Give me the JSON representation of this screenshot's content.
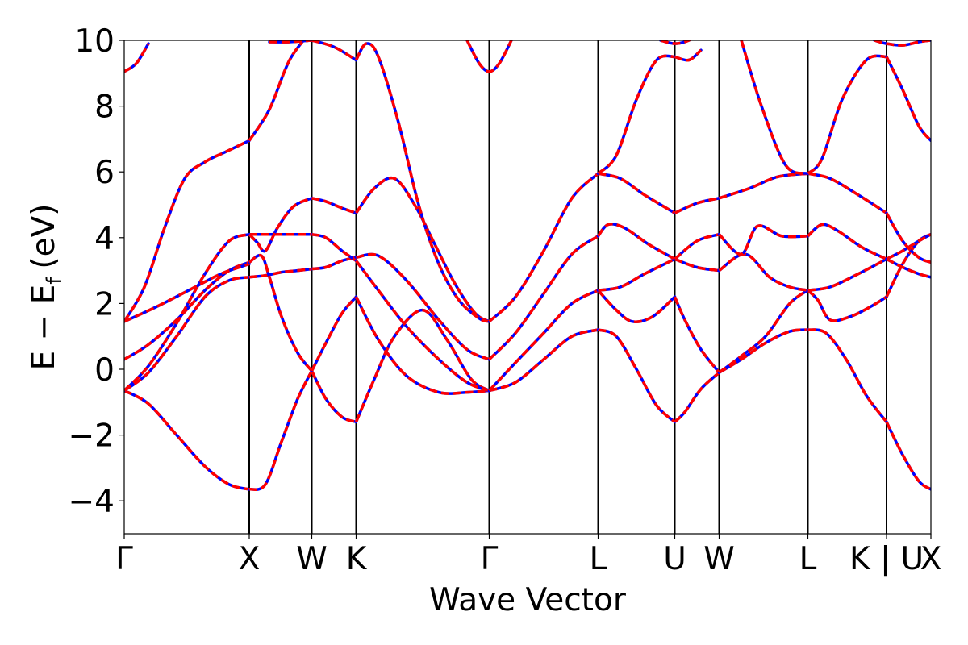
{
  "chart_data": {
    "type": "line",
    "title": "",
    "xlabel": "Wave Vector",
    "ylabel": "E − E",
    "ylabel_subscript": "f",
    "ylabel_unit": "(eV)",
    "ylim": [
      -5,
      10
    ],
    "yticks": [
      -4,
      -2,
      0,
      2,
      4,
      6,
      8,
      10
    ],
    "ytick_labels": [
      "−4",
      "−2",
      "0",
      "2",
      "4",
      "6",
      "8",
      "10"
    ],
    "xlim": [
      0,
      20
    ],
    "kpoints": [
      {
        "label": "Γ",
        "x": 0
      },
      {
        "label": "X",
        "x": 3.1
      },
      {
        "label": "W",
        "x": 4.65
      },
      {
        "label": "K",
        "x": 5.75
      },
      {
        "label": "Γ",
        "x": 9.05
      },
      {
        "label": "L",
        "x": 11.75
      },
      {
        "label": "U",
        "x": 13.65
      },
      {
        "label": "W",
        "x": 14.75
      },
      {
        "label": "L",
        "x": 16.95
      },
      {
        "label": "K | U",
        "x": 18.9
      },
      {
        "label": "X",
        "x": 20
      }
    ],
    "colors": {
      "solid": "#0000ff",
      "dashed": "#ff0000",
      "axis": "#000000"
    },
    "series": [
      {
        "x": [
          0,
          0.6,
          1.3,
          2.0,
          2.6,
          3.1
        ],
        "values": [
          -0.65,
          -1.05,
          -2.0,
          -2.95,
          -3.5,
          -3.65
        ]
      },
      {
        "x": [
          0,
          0.6,
          1.3,
          2.0,
          2.6,
          3.1
        ],
        "values": [
          -0.65,
          -0.1,
          1.0,
          2.2,
          2.7,
          2.8
        ]
      },
      {
        "x": [
          0,
          0.6,
          1.3,
          2.0,
          2.6,
          3.1
        ],
        "values": [
          0.3,
          0.75,
          1.5,
          2.4,
          3.0,
          3.25
        ]
      },
      {
        "x": [
          0,
          0.6,
          1.3,
          2.0,
          2.6,
          3.1
        ],
        "values": [
          -0.65,
          0.1,
          1.4,
          2.9,
          3.9,
          4.1
        ]
      },
      {
        "x": [
          0,
          0.5,
          1.0,
          1.5,
          2.0,
          2.5,
          3.1
        ],
        "values": [
          1.45,
          2.5,
          4.3,
          5.8,
          6.3,
          6.6,
          6.95
        ]
      },
      {
        "x": [
          0,
          0.8,
          1.6,
          2.4,
          3.1
        ],
        "values": [
          1.45,
          1.9,
          2.4,
          2.9,
          3.2
        ]
      },
      {
        "x": [
          0,
          0.3,
          0.6
        ],
        "values": [
          9.05,
          9.3,
          9.9
        ]
      },
      {
        "x": [
          3.1,
          3.5,
          3.9,
          4.3,
          4.65
        ],
        "values": [
          -3.65,
          -3.5,
          -2.2,
          -0.9,
          -0.05
        ]
      },
      {
        "x": [
          3.1,
          3.5,
          3.9,
          4.3,
          4.65
        ],
        "values": [
          2.8,
          2.85,
          2.95,
          3.0,
          3.05
        ]
      },
      {
        "x": [
          3.1,
          3.4,
          3.6,
          3.9,
          4.3,
          4.65
        ],
        "values": [
          3.25,
          3.45,
          2.8,
          1.6,
          0.5,
          -0.05
        ]
      },
      {
        "x": [
          3.1,
          3.5,
          3.9,
          4.3,
          4.65
        ],
        "values": [
          4.1,
          4.1,
          4.1,
          4.1,
          4.1
        ]
      },
      {
        "x": [
          3.1,
          3.3,
          3.5,
          3.8,
          4.2,
          4.65
        ],
        "values": [
          4.1,
          3.85,
          3.6,
          4.3,
          4.95,
          5.2
        ]
      },
      {
        "x": [
          3.1,
          3.6,
          4.1,
          4.65
        ],
        "values": [
          6.95,
          7.9,
          9.4,
          10.3
        ]
      },
      {
        "x": [
          3.6,
          4.1,
          4.65
        ],
        "values": [
          9.95,
          9.95,
          10.0
        ]
      },
      {
        "x": [
          4.65,
          5.0,
          5.4,
          5.75
        ],
        "values": [
          -0.05,
          -0.9,
          -1.45,
          -1.6
        ]
      },
      {
        "x": [
          4.65,
          5.0,
          5.4,
          5.75
        ],
        "values": [
          -0.05,
          0.8,
          1.7,
          2.2
        ]
      },
      {
        "x": [
          4.65,
          5.0,
          5.4,
          5.75
        ],
        "values": [
          3.05,
          3.1,
          3.3,
          3.4
        ]
      },
      {
        "x": [
          4.65,
          5.0,
          5.4,
          5.75
        ],
        "values": [
          4.1,
          4.0,
          3.6,
          3.3
        ]
      },
      {
        "x": [
          4.65,
          5.0,
          5.4,
          5.75
        ],
        "values": [
          5.2,
          5.1,
          4.9,
          4.75
        ]
      },
      {
        "x": [
          4.65,
          5.2,
          5.75
        ],
        "values": [
          10.0,
          9.8,
          9.4
        ]
      },
      {
        "x": [
          5.75,
          6.2,
          6.7,
          7.4,
          8.0,
          8.6,
          9.05
        ],
        "values": [
          -1.6,
          -0.3,
          1.0,
          1.8,
          0.9,
          -0.3,
          -0.65
        ]
      },
      {
        "x": [
          5.75,
          6.3,
          7.0,
          7.8,
          8.5,
          9.05
        ],
        "values": [
          2.2,
          0.9,
          -0.2,
          -0.7,
          -0.7,
          -0.65
        ]
      },
      {
        "x": [
          5.75,
          6.3,
          7.0,
          7.8,
          8.5,
          9.05
        ],
        "values": [
          3.4,
          3.45,
          2.7,
          1.5,
          0.6,
          0.3
        ]
      },
      {
        "x": [
          5.75,
          6.3,
          7.0,
          7.8,
          8.5,
          9.05
        ],
        "values": [
          3.3,
          2.4,
          1.3,
          0.3,
          -0.4,
          -0.65
        ]
      },
      {
        "x": [
          5.75,
          6.2,
          6.7,
          7.2,
          7.7,
          8.2,
          8.7,
          9.05
        ],
        "values": [
          4.75,
          5.5,
          5.8,
          5.0,
          3.8,
          2.6,
          1.7,
          1.45
        ]
      },
      {
        "x": [
          5.75,
          6.0,
          6.3,
          6.8,
          7.3,
          7.8,
          8.3,
          8.8,
          9.05
        ],
        "values": [
          9.4,
          9.9,
          9.5,
          7.5,
          5.0,
          3.2,
          2.1,
          1.55,
          1.45
        ]
      },
      {
        "x": [
          8.5,
          8.8,
          9.05,
          9.3,
          9.6
        ],
        "values": [
          10.0,
          9.3,
          9.05,
          9.3,
          10.0
        ]
      },
      {
        "x": [
          9.05,
          9.7,
          10.4,
          11.1,
          11.75
        ],
        "values": [
          -0.65,
          -0.4,
          0.3,
          1.0,
          1.2
        ]
      },
      {
        "x": [
          9.05,
          9.7,
          10.4,
          11.1,
          11.75
        ],
        "values": [
          -0.65,
          0.2,
          1.1,
          2.0,
          2.4
        ]
      },
      {
        "x": [
          9.05,
          9.7,
          10.4,
          11.1,
          11.75
        ],
        "values": [
          0.3,
          1.1,
          2.3,
          3.5,
          4.05
        ]
      },
      {
        "x": [
          9.05,
          9.7,
          10.4,
          11.1,
          11.75
        ],
        "values": [
          1.45,
          2.2,
          3.6,
          5.2,
          5.95
        ]
      },
      {
        "x": [
          11.75,
          12.2,
          12.7,
          13.2,
          13.65
        ],
        "values": [
          1.2,
          1.0,
          0.0,
          -1.1,
          -1.6
        ]
      },
      {
        "x": [
          11.75,
          12.2,
          12.6,
          13.1,
          13.65
        ],
        "values": [
          2.4,
          1.8,
          1.45,
          1.6,
          2.2
        ]
      },
      {
        "x": [
          11.75,
          12.3,
          12.9,
          13.65
        ],
        "values": [
          2.4,
          2.5,
          2.9,
          3.35
        ]
      },
      {
        "x": [
          11.75,
          12.0,
          12.4,
          13.0,
          13.65
        ],
        "values": [
          4.05,
          4.4,
          4.3,
          3.8,
          3.35
        ]
      },
      {
        "x": [
          11.75,
          12.3,
          12.9,
          13.65
        ],
        "values": [
          5.95,
          5.8,
          5.3,
          4.75
        ]
      },
      {
        "x": [
          11.75,
          12.2,
          12.7,
          13.2,
          13.65
        ],
        "values": [
          5.95,
          6.5,
          8.2,
          9.4,
          9.5
        ]
      },
      {
        "x": [
          13.3,
          13.65,
          14.0,
          14.4
        ],
        "values": [
          10.0,
          9.9,
          10.0,
          10.3
        ]
      },
      {
        "x": [
          13.65,
          13.9,
          14.3,
          14.75
        ],
        "values": [
          -1.6,
          -1.3,
          -0.6,
          -0.1
        ]
      },
      {
        "x": [
          13.65,
          13.9,
          14.3,
          14.75
        ],
        "values": [
          2.2,
          1.5,
          0.6,
          -0.1
        ]
      },
      {
        "x": [
          13.65,
          14.2,
          14.75
        ],
        "values": [
          3.35,
          3.1,
          3.0
        ]
      },
      {
        "x": [
          13.65,
          14.2,
          14.75
        ],
        "values": [
          3.35,
          3.9,
          4.1
        ]
      },
      {
        "x": [
          13.65,
          14.2,
          14.75
        ],
        "values": [
          4.75,
          5.05,
          5.2
        ]
      },
      {
        "x": [
          13.65,
          14.0,
          14.3
        ],
        "values": [
          9.5,
          9.4,
          9.7
        ]
      },
      {
        "x": [
          14.75,
          15.3,
          15.9,
          16.5,
          16.95
        ],
        "values": [
          -0.1,
          0.3,
          0.8,
          1.15,
          1.2
        ]
      },
      {
        "x": [
          14.75,
          15.3,
          15.9,
          16.5,
          16.95
        ],
        "values": [
          -0.1,
          0.4,
          1.0,
          2.0,
          2.4
        ]
      },
      {
        "x": [
          14.75,
          15.4,
          16.0,
          16.5,
          16.95
        ],
        "values": [
          3.0,
          3.5,
          2.8,
          2.5,
          2.4
        ]
      },
      {
        "x": [
          14.75,
          15.3,
          15.7,
          16.3,
          16.95
        ],
        "values": [
          4.1,
          3.5,
          4.35,
          4.05,
          4.05
        ]
      },
      {
        "x": [
          14.75,
          15.5,
          16.2,
          16.95
        ],
        "values": [
          5.2,
          5.5,
          5.85,
          5.95
        ]
      },
      {
        "x": [
          15.3,
          15.8,
          16.4,
          16.95
        ],
        "values": [
          10.0,
          8.0,
          6.2,
          5.95
        ]
      },
      {
        "x": [
          16.95,
          17.4,
          17.9,
          18.4,
          18.9
        ],
        "values": [
          1.2,
          1.1,
          0.3,
          -0.8,
          -1.6
        ]
      },
      {
        "x": [
          16.95,
          17.2,
          17.5,
          18.0,
          18.5,
          18.9
        ],
        "values": [
          2.4,
          2.1,
          1.5,
          1.6,
          1.9,
          2.2
        ]
      },
      {
        "x": [
          16.95,
          17.5,
          18.2,
          18.9
        ],
        "values": [
          2.4,
          2.5,
          2.9,
          3.35
        ]
      },
      {
        "x": [
          16.95,
          17.3,
          17.7,
          18.3,
          18.9
        ],
        "values": [
          4.05,
          4.4,
          4.2,
          3.7,
          3.35
        ]
      },
      {
        "x": [
          16.95,
          17.5,
          18.2,
          18.9
        ],
        "values": [
          5.95,
          5.8,
          5.3,
          4.75
        ]
      },
      {
        "x": [
          16.95,
          17.3,
          17.8,
          18.4,
          18.9
        ],
        "values": [
          5.95,
          6.4,
          8.2,
          9.4,
          9.5
        ]
      },
      {
        "x": [
          18.9,
          19.3,
          19.7,
          20
        ],
        "values": [
          -1.6,
          -2.6,
          -3.4,
          -3.65
        ]
      },
      {
        "x": [
          18.9,
          19.3,
          19.7,
          20
        ],
        "values": [
          2.2,
          3.2,
          3.9,
          4.1
        ]
      },
      {
        "x": [
          18.9,
          19.3,
          19.7,
          20
        ],
        "values": [
          3.35,
          3.6,
          3.9,
          4.1
        ]
      },
      {
        "x": [
          18.9,
          19.3,
          19.7,
          20
        ],
        "values": [
          3.35,
          3.1,
          2.9,
          2.8
        ]
      },
      {
        "x": [
          18.9,
          19.3,
          19.7,
          20
        ],
        "values": [
          4.75,
          3.9,
          3.4,
          3.25
        ]
      },
      {
        "x": [
          18.9,
          19.3,
          19.7,
          20
        ],
        "values": [
          9.5,
          8.5,
          7.4,
          6.95
        ]
      },
      {
        "x": [
          18.6,
          18.9,
          19.3,
          19.7,
          20
        ],
        "values": [
          10.0,
          9.9,
          9.85,
          9.95,
          10.0
        ]
      }
    ]
  }
}
